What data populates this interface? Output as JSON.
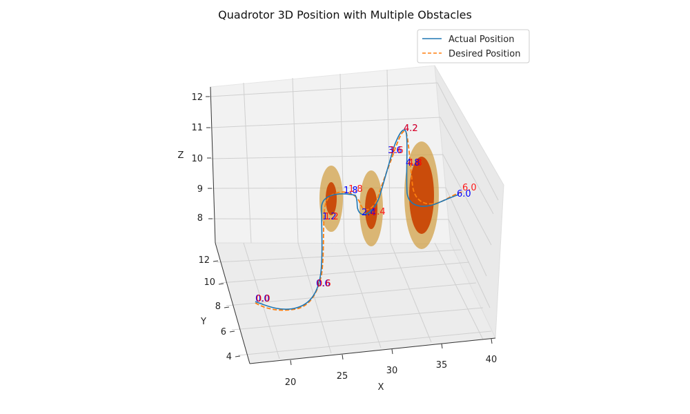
{
  "chart_data": {
    "type": "line3d",
    "title": "Quadrotor 3D Position with Multiple Obstacles",
    "xlabel": "X",
    "ylabel": "Y",
    "zlabel": "Z",
    "x_ticks": [
      "20",
      "25",
      "30",
      "35",
      "40"
    ],
    "y_ticks": [
      "4",
      "6",
      "8",
      "10",
      "12"
    ],
    "z_ticks": [
      "8",
      "9",
      "10",
      "11",
      "12"
    ],
    "xlim": [
      16,
      40.5
    ],
    "ylim": [
      3,
      12.5
    ],
    "zlim": [
      7.4,
      12.4
    ],
    "legend_placement": "top-right",
    "series": [
      {
        "name": "Actual Position",
        "color": "#1f77b4",
        "style": "solid",
        "time_labels": [
          "0.0",
          "0.6",
          "1.2",
          "1.8",
          "2.4",
          "3.6",
          "4.2",
          "4.8",
          "6.0"
        ],
        "label_color": "#0000ff"
      },
      {
        "name": "Desired Position",
        "color": "#ff7f0e",
        "style": "dashed",
        "time_labels": [
          "0.0",
          "0.6",
          "1.2",
          "1.8",
          "2.4",
          "3.6",
          "4.2",
          "4.8",
          "6.0"
        ],
        "label_color": "#ff0000"
      }
    ],
    "obstacles": [
      {
        "name": "obstacle-1",
        "inner_color": "#c84000",
        "outer_color": "#d2a24a"
      },
      {
        "name": "obstacle-2",
        "inner_color": "#c84000",
        "outer_color": "#d2a24a"
      },
      {
        "name": "obstacle-3",
        "inner_color": "#c84000",
        "outer_color": "#d2a24a"
      }
    ]
  }
}
